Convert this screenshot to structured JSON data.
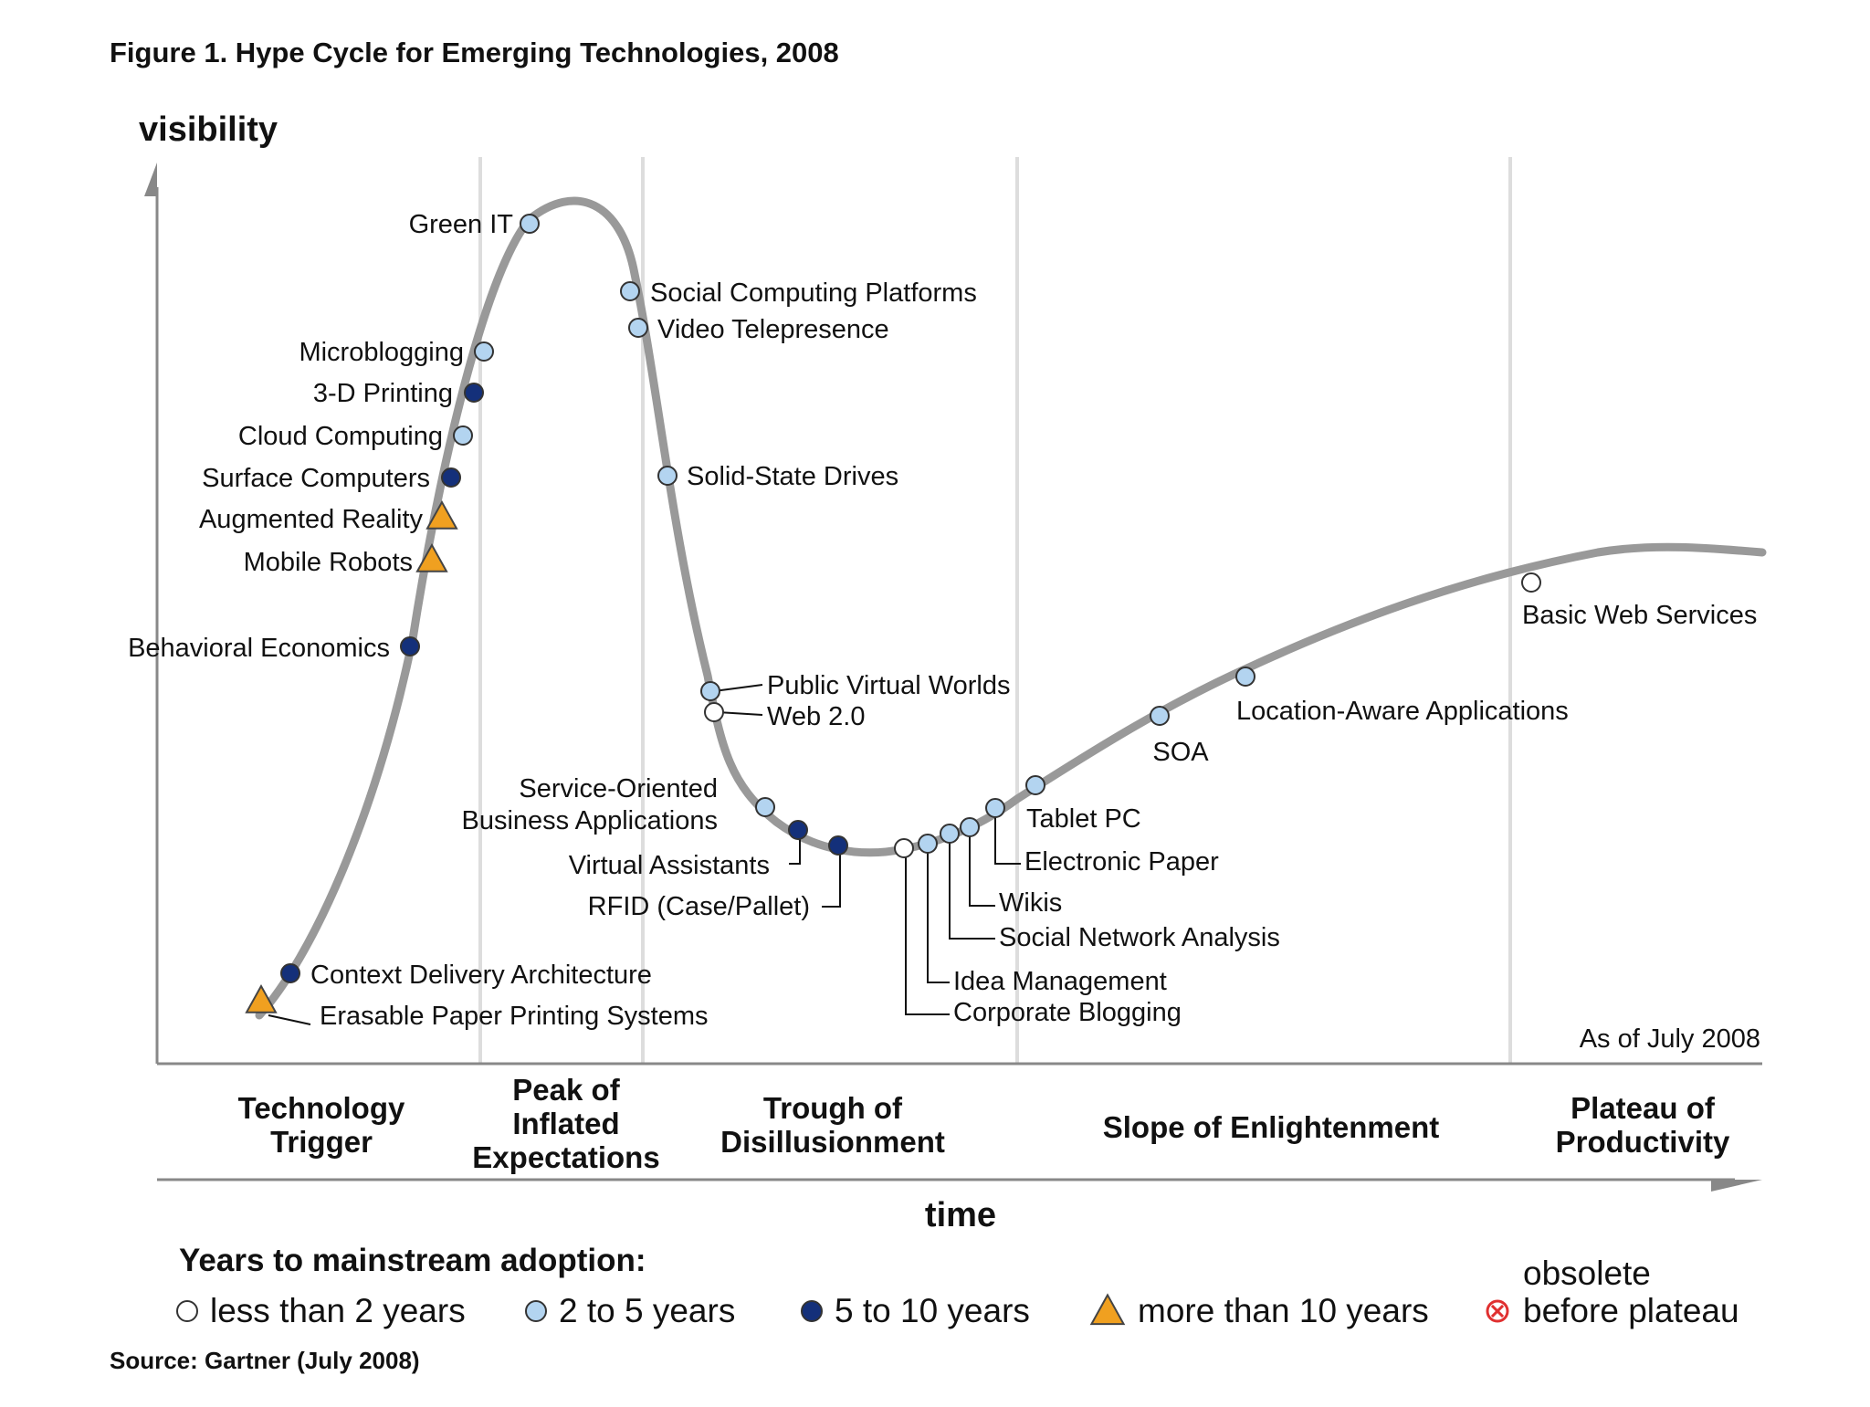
{
  "title": "Figure 1. Hype Cycle for Emerging Technologies, 2008",
  "y_axis_label": "visibility",
  "x_axis_label": "time",
  "as_of": "As of July 2008",
  "source": "Source: Gartner (July 2008)",
  "phases": [
    {
      "id": "trigger",
      "lines": [
        "Technology",
        "Trigger"
      ]
    },
    {
      "id": "peak",
      "lines": [
        "Peak of",
        "Inflated",
        "Expectations"
      ]
    },
    {
      "id": "trough",
      "lines": [
        "Trough of",
        "Disillusionment"
      ]
    },
    {
      "id": "slope",
      "lines": [
        "Slope of Enlightenment"
      ]
    },
    {
      "id": "plateau",
      "lines": [
        "Plateau of",
        "Productivity"
      ]
    }
  ],
  "legend": {
    "title": "Years to mainstream adoption:",
    "items": [
      {
        "key": "lt2",
        "label": "less than 2 years"
      },
      {
        "key": "2to5",
        "label": "2 to 5 years"
      },
      {
        "key": "5to10",
        "label": "5 to 10 years"
      },
      {
        "key": "gt10",
        "label": "more than 10 years"
      },
      {
        "key": "obsolete",
        "label_top": "obsolete",
        "label": "before plateau"
      }
    ]
  },
  "colors": {
    "curve": "#999999",
    "lt2": "#ffffff",
    "2to5": "#b3d4f0",
    "5to10": "#14307a",
    "gt10": "#f0a020",
    "obsolete": "#e03030",
    "grid": "#dddddd",
    "axis": "#888888"
  },
  "technologies": [
    {
      "name": "Green IT",
      "category": "2to5"
    },
    {
      "name": "Social Computing Platforms",
      "category": "2to5"
    },
    {
      "name": "Video Telepresence",
      "category": "2to5"
    },
    {
      "name": "Microblogging",
      "category": "2to5"
    },
    {
      "name": "3-D Printing",
      "category": "5to10"
    },
    {
      "name": "Cloud Computing",
      "category": "2to5"
    },
    {
      "name": "Surface Computers",
      "category": "5to10"
    },
    {
      "name": "Augmented Reality",
      "category": "gt10"
    },
    {
      "name": "Mobile Robots",
      "category": "gt10"
    },
    {
      "name": "Solid-State Drives",
      "category": "2to5"
    },
    {
      "name": "Behavioral Economics",
      "category": "5to10"
    },
    {
      "name": "Public Virtual Worlds",
      "category": "2to5"
    },
    {
      "name": "Web 2.0",
      "category": "lt2"
    },
    {
      "name": "Service-Oriented Business Applications",
      "category": "2to5",
      "lines": [
        "Service-Oriented",
        "Business Applications"
      ]
    },
    {
      "name": "Virtual Assistants",
      "category": "5to10"
    },
    {
      "name": "RFID (Case/Pallet)",
      "category": "5to10"
    },
    {
      "name": "Tablet PC",
      "category": "2to5"
    },
    {
      "name": "Electronic Paper",
      "category": "2to5"
    },
    {
      "name": "Wikis",
      "category": "2to5"
    },
    {
      "name": "Social Network Analysis",
      "category": "2to5"
    },
    {
      "name": "Idea Management",
      "category": "2to5"
    },
    {
      "name": "Corporate Blogging",
      "category": "lt2"
    },
    {
      "name": "SOA",
      "category": "2to5"
    },
    {
      "name": "Location-Aware Applications",
      "category": "2to5"
    },
    {
      "name": "Basic Web Services",
      "category": "lt2"
    },
    {
      "name": "Context Delivery Architecture",
      "category": "5to10"
    },
    {
      "name": "Erasable Paper Printing Systems",
      "category": "gt10"
    }
  ]
}
